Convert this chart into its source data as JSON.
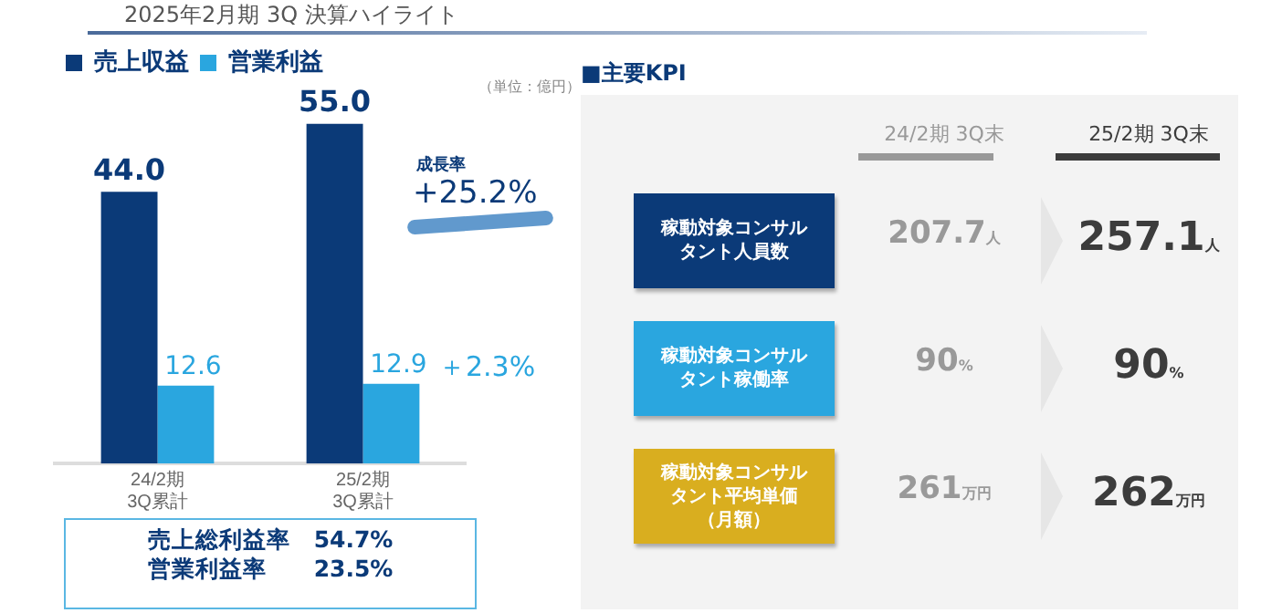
{
  "chart_data": [
    {
      "type": "bar",
      "title": "2025年2月期 3Q 決算ハイライト",
      "categories": [
        "24/2期\n3Q累計",
        "25/2期\n3Q累計"
      ],
      "series": [
        {
          "name": "売上収益",
          "color": "#0b3a78",
          "values": [
            44.0,
            55.0
          ],
          "value_labels": [
            "44.0",
            "55.0"
          ]
        },
        {
          "name": "営業利益",
          "color": "#2aa6df",
          "values": [
            12.6,
            12.9
          ],
          "value_labels": [
            "12.6",
            "12.9"
          ]
        }
      ],
      "legend": "top",
      "tick_labels": "x",
      "annotations": [
        "（単位：億円）",
        "成長率",
        "+25.2%",
        "＋2.3%",
        "売上総利益率　54.7%",
        "営業利益率　　23.5%"
      ]
    },
    {
      "type": "other",
      "title": "■主要KPI",
      "categories": [
        "稼動対象コンサルタント人員数",
        "稼動対象コンサルタント稼働率",
        "稼動対象コンサルタント平均単価（月額）"
      ],
      "colors": [
        "#0b3a78",
        "#2aa6df",
        "#d9ae1f"
      ],
      "series": [
        {
          "name": "24/2期 3Q末",
          "values": [
            207.7,
            90,
            261
          ],
          "value_labels": [
            "207.7人",
            "90%",
            "261万円"
          ]
        },
        {
          "name": "25/2期 3Q末",
          "values": [
            257.1,
            90,
            262
          ],
          "value_labels": [
            "257.1人",
            "90%",
            "262万円"
          ]
        }
      ]
    }
  ]
}
